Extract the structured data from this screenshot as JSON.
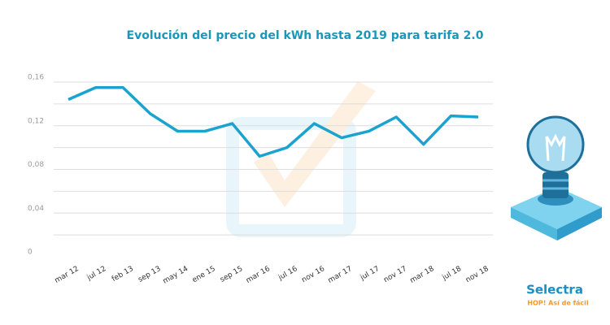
{
  "chart_data": {
    "type": "line",
    "title": "Evolución del precio del kWh hasta 2019 para tarifa 2.0",
    "categories": [
      "mar 12",
      "jul 12",
      "feb 13",
      "sep 13",
      "may 14",
      "ene 15",
      "sep 15",
      "mar 16",
      "jul 16",
      "nov 16",
      "mar 17",
      "jul 17",
      "nov 17",
      "mar 18",
      "jul 18",
      "nov 18"
    ],
    "series": [
      {
        "name": "precio del kWh",
        "color": "#1ba3d0",
        "values": [
          0.144,
          0.155,
          0.155,
          0.131,
          0.115,
          0.115,
          0.122,
          0.092,
          0.1,
          0.122,
          0.109,
          0.115,
          0.128,
          0.103,
          0.129,
          0.128
        ]
      }
    ],
    "ylim": [
      0,
      0.16
    ],
    "yticks": [
      {
        "value": 0,
        "label": "0"
      },
      {
        "value": 0.04,
        "label": "0,04"
      },
      {
        "value": 0.08,
        "label": "0,08"
      },
      {
        "value": 0.12,
        "label": "0,12"
      },
      {
        "value": 0.16,
        "label": "0,16"
      }
    ],
    "grid_yticks": [
      0.02,
      0.04,
      0.06,
      0.08,
      0.1,
      0.12,
      0.14,
      0.16
    ],
    "grid": true,
    "brand": {
      "name": "Selectra",
      "slogan": "HOP! Así de fácil"
    }
  }
}
